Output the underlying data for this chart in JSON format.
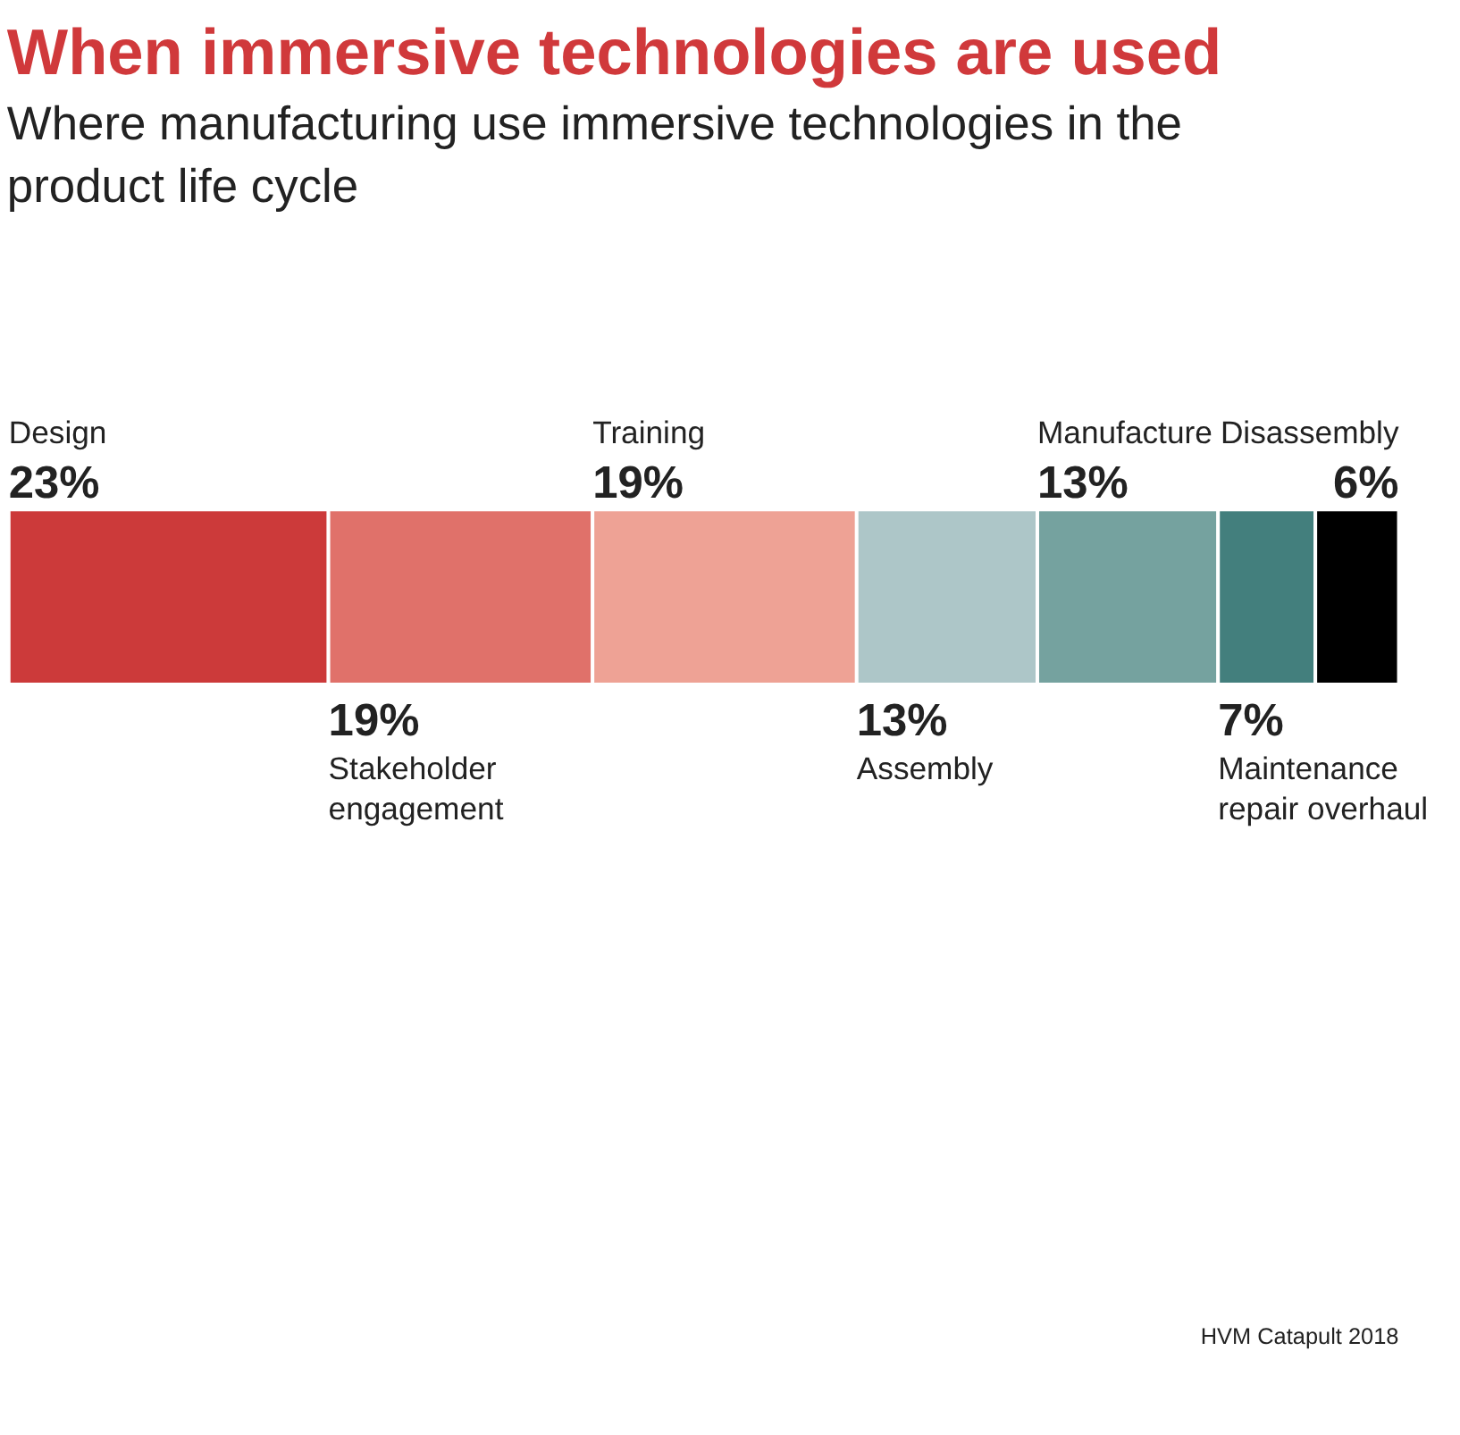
{
  "chart_data": {
    "type": "bar",
    "title": "When immersive technologies are used",
    "subtitle": "Where manufacturing use immersive technologies in the product life cycle",
    "orientation": "horizontal",
    "stacked": true,
    "categories": [
      null
    ],
    "series": [
      {
        "name": "Design",
        "color": "#cc3a3a",
        "values": [
          23
        ],
        "value_labels": [
          "23%"
        ]
      },
      {
        "name": "Stakeholder engagement",
        "color": "#e0716a",
        "values": [
          19
        ],
        "value_labels": [
          "19%"
        ]
      },
      {
        "name": "Training",
        "color": "#eea295",
        "values": [
          19
        ],
        "value_labels": [
          "19%"
        ]
      },
      {
        "name": "Assembly",
        "color": "#adc6c8",
        "values": [
          13
        ],
        "value_labels": [
          "13%"
        ]
      },
      {
        "name": "Manufacture",
        "color": "#75a29f",
        "values": [
          13
        ],
        "value_labels": [
          "13%"
        ]
      },
      {
        "name": "Maintenance repair overhaul",
        "color": "#437f7d",
        "values": [
          7
        ],
        "value_labels": [
          "7%"
        ]
      },
      {
        "name": "Disassembly",
        "color": "#000000",
        "values": [
          6
        ],
        "value_labels": [
          "6%"
        ]
      }
    ],
    "annotations": [
      "HVM Catapult 2018"
    ]
  }
}
